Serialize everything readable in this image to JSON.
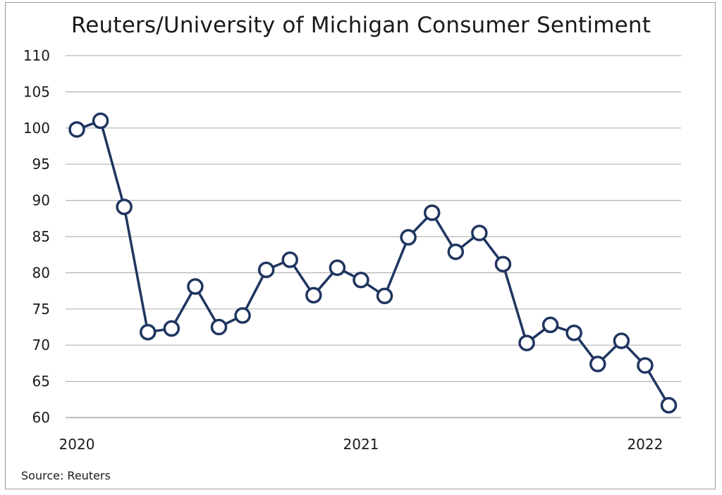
{
  "chart_data": {
    "type": "line",
    "title": "Reuters/University of Michigan Consumer Sentiment",
    "source": "Source: Reuters",
    "xlabel": "",
    "ylabel": "",
    "ylim": [
      60,
      110
    ],
    "y_ticks": [
      60,
      65,
      70,
      75,
      80,
      85,
      90,
      95,
      100,
      105,
      110
    ],
    "x_tick_labels": [
      {
        "label": "2020",
        "index": 0
      },
      {
        "label": "2021",
        "index": 12
      },
      {
        "label": "2022",
        "index": 24
      }
    ],
    "grid": "horizontal",
    "series": [
      {
        "values": [
          99.8,
          101.0,
          89.1,
          71.8,
          72.3,
          78.1,
          72.5,
          74.1,
          80.4,
          81.8,
          76.9,
          80.7,
          79.0,
          76.8,
          84.9,
          88.3,
          82.9,
          85.5,
          81.2,
          70.3,
          72.8,
          71.7,
          67.4,
          70.6,
          67.2,
          61.7
        ]
      }
    ],
    "colors": {
      "line": "#1f3560",
      "marker_fill": "#ffffff",
      "grid": "#b3b3b3",
      "axis": "#999999"
    }
  }
}
